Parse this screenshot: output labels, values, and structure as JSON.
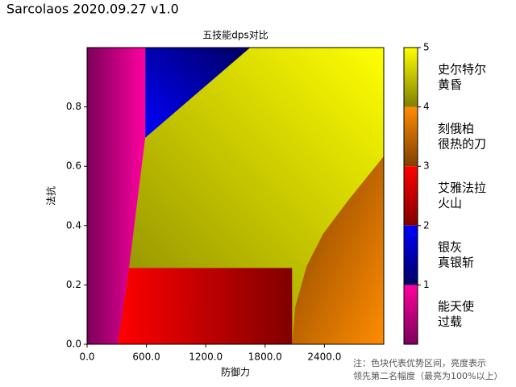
{
  "chart_data": {
    "type": "region-map",
    "title": "Sarcolaos 2020.09.27 v1.0",
    "subtitle": "五技能dps对比",
    "x_label": "防御力",
    "y_label": "法抗",
    "note": [
      "注：色块代表优势区间，亮度表示",
      "领先第二名幅度（最亮为100%以上）"
    ],
    "xlim": [
      0,
      3000
    ],
    "ylim": [
      0,
      1
    ],
    "xticks": [
      {
        "value": 0,
        "label": "0.0"
      },
      {
        "value": 600,
        "label": "600.0"
      },
      {
        "value": 1200,
        "label": "1200.0"
      },
      {
        "value": 1800,
        "label": "1800.0"
      },
      {
        "value": 2400,
        "label": "2400.0"
      }
    ],
    "yticks": [
      {
        "value": 0,
        "label": "0.0"
      },
      0.2,
      0.4,
      0.6,
      0.8
    ],
    "colorbar": {
      "lim": [
        0,
        5
      ],
      "ticks": [
        1,
        2,
        3,
        4,
        5
      ]
    },
    "segments": [
      {
        "label": [
          "能天使",
          "过载"
        ],
        "range": [
          0,
          1
        ],
        "colors": [
          "#7a005a",
          "#ff00a0"
        ],
        "polygon": {
          "x": [
            0,
            310,
            424,
            588,
            588,
            0
          ],
          "y": [
            0,
            0,
            0.257,
            0.696,
            1,
            1
          ]
        }
      },
      {
        "label": [
          "银灰",
          "真银斩"
        ],
        "range": [
          1,
          2
        ],
        "colors": [
          "#000060",
          "#0000ff"
        ],
        "polygon": {
          "x": [
            588,
            1649,
            588
          ],
          "y": [
            1,
            1,
            0.696
          ]
        }
      },
      {
        "label": [
          "艾雅法拉",
          "火山"
        ],
        "range": [
          2,
          3
        ],
        "colors": [
          "#800000",
          "#ff0000"
        ],
        "polygon": {
          "x": [
            310,
            424,
            2073,
            2073
          ],
          "y": [
            0,
            0.257,
            0.257,
            0
          ]
        }
      },
      {
        "label": [
          "刻俄柏",
          "很热的刀"
        ],
        "range": [
          3,
          4
        ],
        "colors": [
          "#804000",
          "#ff8c00"
        ],
        "polygon": {
          "x": [
            2073,
            2106,
            2220,
            2384,
            2629,
            3000,
            3000
          ],
          "y": [
            0,
            0.127,
            0.263,
            0.371,
            0.48,
            0.634,
            0
          ]
        }
      },
      {
        "label": [
          "史尔特尔",
          "黄昏"
        ],
        "range": [
          4,
          5
        ],
        "colors": [
          "#808000",
          "#ffff00"
        ],
        "polygon": {
          "x": [
            0,
            3000,
            3000,
            0
          ],
          "y": [
            0,
            0,
            1,
            1
          ]
        }
      }
    ]
  }
}
